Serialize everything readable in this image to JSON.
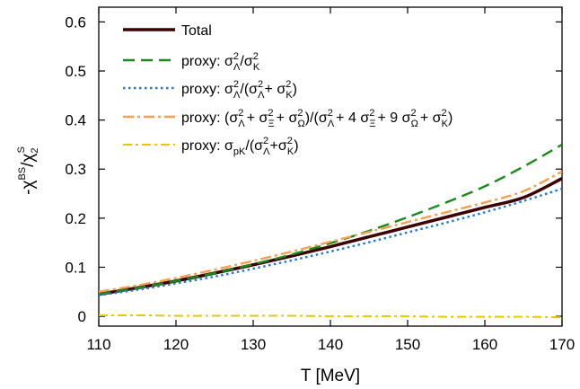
{
  "chart_data": {
    "type": "line",
    "title": "",
    "xlabel": "T [MeV]",
    "ylabel": {
      "main": "-χ",
      "main_sup": "BS",
      "denominator": "/χ",
      "denominator_sub": "2",
      "denominator_sup": "S"
    },
    "xlim": [
      110,
      170
    ],
    "ylim": [
      -0.02,
      0.63
    ],
    "xticks": [
      110,
      120,
      130,
      140,
      150,
      160,
      170
    ],
    "yticks": [
      0,
      0.1,
      0.2,
      0.3,
      0.4,
      0.5,
      0.6
    ],
    "ytick_labels": [
      "0",
      "0.1",
      "0.2",
      "0.3",
      "0.4",
      "0.5",
      "0.6"
    ],
    "grid": false,
    "legend_position": "top-left",
    "x": [
      110,
      115,
      120,
      125,
      130,
      135,
      140,
      145,
      150,
      155,
      160,
      165,
      170
    ],
    "series": [
      {
        "name": "Total",
        "color": "#3d0000",
        "style": "solid",
        "values": [
          0.045,
          0.058,
          0.072,
          0.088,
          0.105,
          0.123,
          0.142,
          0.162,
          0.182,
          0.202,
          0.222,
          0.242,
          0.281
        ]
      },
      {
        "name": "proxy: σ²_Λ/σ²_K",
        "color": "#1a8a1a",
        "style": "dashed",
        "values": [
          0.045,
          0.058,
          0.072,
          0.088,
          0.106,
          0.126,
          0.149,
          0.174,
          0.202,
          0.232,
          0.265,
          0.305,
          0.35
        ]
      },
      {
        "name": "proxy: σ²_Λ/(σ²_Λ+ σ²_K)",
        "color": "#1f78d4",
        "style": "dotted",
        "values": [
          0.043,
          0.054,
          0.067,
          0.081,
          0.097,
          0.114,
          0.132,
          0.151,
          0.171,
          0.191,
          0.212,
          0.235,
          0.26
        ]
      },
      {
        "name": "proxy: (σ²_Λ + σ²_Ξ + σ²_Ω)/(σ²_Λ + 4 σ²_Ξ + 9 σ²_Ω + σ²_K)",
        "color": "#f5a050",
        "style": "dashdot",
        "values": [
          0.05,
          0.063,
          0.078,
          0.095,
          0.113,
          0.132,
          0.152,
          0.172,
          0.192,
          0.212,
          0.232,
          0.255,
          0.295
        ]
      },
      {
        "name": "proxy: σ_pK/(σ²_Λ+σ²_K)",
        "color": "#e6c800",
        "style": "dashdot",
        "values": [
          0.002,
          0.002,
          0.001,
          0.001,
          0.001,
          0.001,
          0.0,
          0.0,
          0.0,
          -0.001,
          -0.001,
          -0.001,
          -0.002
        ]
      }
    ],
    "legend": {
      "total": "Total",
      "proxy": "proxy:",
      "sigma": "σ",
      "sq": "2",
      "lambda": "Λ",
      "kaon": "K",
      "xi": "Ξ",
      "omega": "Ω",
      "pk": "pK",
      "slash": "/",
      "slash_open": "/(",
      "open": "(",
      "close": ")",
      "plus": "+",
      "plus_sp": "+ ",
      "plus_4": "+ 4",
      "plus_9": "+ 9"
    }
  }
}
